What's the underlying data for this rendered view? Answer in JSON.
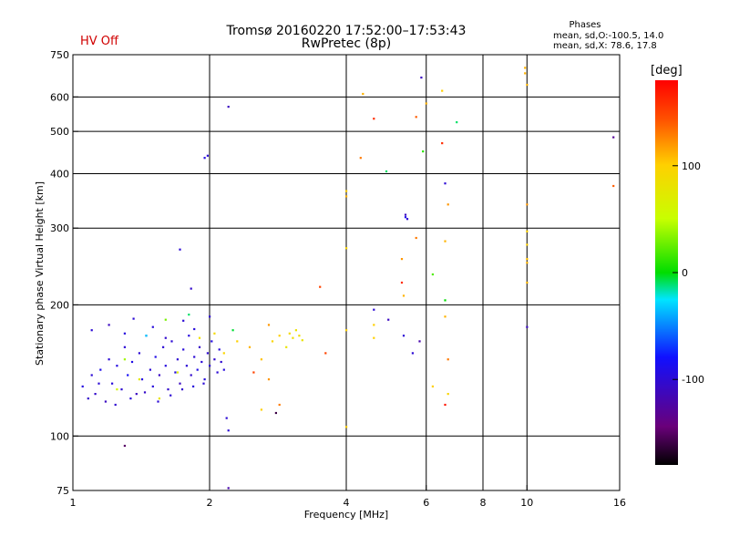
{
  "header": {
    "title_line1": "Tromsø 20160220 17:52:00–17:53:43",
    "title_line2": "RwPretec (8p)",
    "hv_status": "HV Off",
    "phases_heading": "Phases",
    "phases_o": "mean, sd,O:-100.5, 14.0",
    "phases_x": "mean, sd,X:  78.6, 17.8"
  },
  "colors": {
    "hv_status": "#d00000",
    "dominant_points": "#1030e0",
    "grid": "#000000"
  },
  "colorbar": {
    "label": "[deg]",
    "ticks": [
      {
        "value": 100,
        "label": "100"
      },
      {
        "value": 0,
        "label": "0"
      },
      {
        "value": -100,
        "label": "-100"
      }
    ],
    "range": [
      -180,
      180
    ]
  },
  "chart_data": {
    "type": "scatter",
    "xlabel": "Frequency [MHz]",
    "ylabel": "Stationary phase Virtual Height [km]",
    "xscale": "log",
    "yscale": "log",
    "xlim": [
      1,
      16
    ],
    "ylim": [
      75,
      750
    ],
    "x_ticks": [
      {
        "v": 1,
        "label": "1"
      },
      {
        "v": 2,
        "label": "2"
      },
      {
        "v": 4,
        "label": "4"
      },
      {
        "v": 6,
        "label": "6"
      },
      {
        "v": 8,
        "label": "8"
      },
      {
        "v": 10,
        "label": "10"
      },
      {
        "v": 16,
        "label": "16"
      }
    ],
    "y_ticks": [
      {
        "v": 75,
        "label": "75"
      },
      {
        "v": 100,
        "label": "100"
      },
      {
        "v": 200,
        "label": "200"
      },
      {
        "v": 300,
        "label": "300"
      },
      {
        "v": 400,
        "label": "400"
      },
      {
        "v": 500,
        "label": "500"
      },
      {
        "v": 600,
        "label": "600"
      },
      {
        "v": 750,
        "label": "750"
      }
    ],
    "grid_x": [
      2,
      4,
      6,
      8,
      10
    ],
    "grid_y": [
      100,
      200,
      300,
      400,
      500,
      600
    ],
    "points_note": "phase in degrees",
    "points": [
      [
        1.05,
        130,
        -95
      ],
      [
        1.1,
        138,
        -100
      ],
      [
        1.12,
        125,
        -105
      ],
      [
        1.15,
        142,
        -90
      ],
      [
        1.18,
        120,
        -110
      ],
      [
        1.2,
        150,
        -100
      ],
      [
        1.22,
        132,
        -98
      ],
      [
        1.25,
        145,
        -95
      ],
      [
        1.28,
        128,
        -102
      ],
      [
        1.3,
        160,
        -100
      ],
      [
        1.32,
        138,
        -85
      ],
      [
        1.35,
        148,
        -92
      ],
      [
        1.38,
        125,
        -110
      ],
      [
        1.4,
        155,
        -100
      ],
      [
        1.42,
        135,
        -95
      ],
      [
        1.45,
        170,
        -105
      ],
      [
        1.48,
        142,
        -100
      ],
      [
        1.5,
        130,
        -98
      ],
      [
        1.52,
        152,
        -92
      ],
      [
        1.55,
        138,
        -108
      ],
      [
        1.58,
        160,
        -100
      ],
      [
        1.6,
        145,
        -96
      ],
      [
        1.62,
        128,
        -104
      ],
      [
        1.65,
        165,
        -100
      ],
      [
        1.68,
        140,
        -94
      ],
      [
        1.7,
        150,
        -102
      ],
      [
        1.72,
        132,
        -110
      ],
      [
        1.75,
        158,
        -98
      ],
      [
        1.78,
        145,
        -100
      ],
      [
        1.8,
        170,
        -96
      ],
      [
        1.82,
        138,
        -104
      ],
      [
        1.85,
        152,
        -100
      ],
      [
        1.88,
        142,
        -92
      ],
      [
        1.9,
        160,
        -106
      ],
      [
        1.92,
        148,
        -100
      ],
      [
        1.95,
        135,
        -98
      ],
      [
        1.98,
        155,
        -102
      ],
      [
        2.0,
        145,
        -100
      ],
      [
        2.02,
        165,
        -95
      ],
      [
        2.05,
        150,
        -104
      ],
      [
        2.08,
        140,
        -100
      ],
      [
        2.1,
        158,
        -98
      ],
      [
        2.12,
        148,
        -102
      ],
      [
        2.15,
        142,
        -96
      ],
      [
        1.08,
        122,
        -105
      ],
      [
        1.14,
        132,
        -100
      ],
      [
        1.24,
        118,
        -102
      ],
      [
        1.34,
        122,
        -98
      ],
      [
        1.44,
        126,
        -106
      ],
      [
        1.54,
        120,
        -100
      ],
      [
        1.64,
        124,
        -100
      ],
      [
        1.74,
        128,
        -104
      ],
      [
        1.84,
        130,
        -98
      ],
      [
        1.94,
        132,
        -100
      ],
      [
        1.1,
        175,
        -100
      ],
      [
        1.2,
        180,
        -110
      ],
      [
        1.3,
        172,
        -96
      ],
      [
        1.36,
        186,
        -100
      ],
      [
        1.5,
        178,
        -98
      ],
      [
        1.6,
        168,
        -104
      ],
      [
        1.75,
        184,
        -100
      ],
      [
        1.85,
        176,
        -98
      ],
      [
        2.0,
        188,
        -102
      ],
      [
        1.25,
        128,
        60
      ],
      [
        1.4,
        135,
        75
      ],
      [
        1.55,
        122,
        80
      ],
      [
        1.7,
        140,
        70
      ],
      [
        1.9,
        168,
        85
      ],
      [
        2.05,
        172,
        90
      ],
      [
        2.15,
        155,
        95
      ],
      [
        2.3,
        165,
        100
      ],
      [
        2.45,
        160,
        110
      ],
      [
        2.6,
        150,
        105
      ],
      [
        2.75,
        165,
        95
      ],
      [
        2.85,
        170,
        100
      ],
      [
        2.95,
        160,
        80
      ],
      [
        3.0,
        172,
        90
      ],
      [
        3.05,
        168,
        85
      ],
      [
        3.1,
        175,
        82
      ],
      [
        3.15,
        170,
        88
      ],
      [
        3.2,
        166,
        80
      ],
      [
        2.7,
        180,
        120
      ],
      [
        2.5,
        140,
        150
      ],
      [
        1.6,
        185,
        30
      ],
      [
        1.8,
        190,
        -10
      ],
      [
        1.3,
        150,
        40
      ],
      [
        1.45,
        170,
        -30
      ],
      [
        2.25,
        175,
        -5
      ],
      [
        1.98,
        440,
        -100
      ],
      [
        1.95,
        435,
        -95
      ],
      [
        2.2,
        570,
        -110
      ],
      [
        1.72,
        268,
        -100
      ],
      [
        1.82,
        218,
        -105
      ],
      [
        1.3,
        95,
        -150
      ],
      [
        2.18,
        110,
        -100
      ],
      [
        2.2,
        103,
        -100
      ],
      [
        2.2,
        76,
        -120
      ],
      [
        2.8,
        113,
        -160
      ],
      [
        2.6,
        115,
        100
      ],
      [
        2.7,
        135,
        120
      ],
      [
        2.85,
        118,
        130
      ],
      [
        3.5,
        220,
        150
      ],
      [
        3.6,
        155,
        150
      ],
      [
        4.0,
        365,
        100
      ],
      [
        4.0,
        355,
        110
      ],
      [
        4.0,
        270,
        95
      ],
      [
        4.0,
        175,
        100
      ],
      [
        4.0,
        105,
        100
      ],
      [
        4.3,
        435,
        130
      ],
      [
        4.35,
        610,
        110
      ],
      [
        4.6,
        535,
        160
      ],
      [
        4.6,
        195,
        -100
      ],
      [
        4.6,
        180,
        100
      ],
      [
        4.6,
        168,
        100
      ],
      [
        4.9,
        405,
        -10
      ],
      [
        4.95,
        185,
        -110
      ],
      [
        5.3,
        255,
        120
      ],
      [
        5.3,
        225,
        160
      ],
      [
        5.35,
        210,
        110
      ],
      [
        5.4,
        322,
        -110
      ],
      [
        5.45,
        315,
        -100
      ],
      [
        5.4,
        318,
        -90
      ],
      [
        5.35,
        170,
        -100
      ],
      [
        5.7,
        285,
        130
      ],
      [
        5.7,
        540,
        140
      ],
      [
        5.9,
        450,
        10
      ],
      [
        5.85,
        665,
        -110
      ],
      [
        6.0,
        580,
        110
      ],
      [
        6.2,
        235,
        20
      ],
      [
        6.5,
        620,
        100
      ],
      [
        6.5,
        470,
        160
      ],
      [
        6.6,
        280,
        110
      ],
      [
        6.6,
        380,
        -100
      ],
      [
        6.7,
        340,
        120
      ],
      [
        6.6,
        205,
        0
      ],
      [
        6.6,
        188,
        110
      ],
      [
        6.7,
        150,
        130
      ],
      [
        6.7,
        125,
        95
      ],
      [
        6.6,
        118,
        170
      ],
      [
        7.0,
        525,
        -10
      ],
      [
        5.6,
        155,
        -100
      ],
      [
        5.8,
        165,
        -120
      ],
      [
        6.2,
        130,
        100
      ],
      [
        9.9,
        700,
        110
      ],
      [
        9.9,
        680,
        110
      ],
      [
        10.0,
        640,
        110
      ],
      [
        10.0,
        340,
        120
      ],
      [
        10.0,
        295,
        100
      ],
      [
        10.0,
        275,
        100
      ],
      [
        10.0,
        255,
        105
      ],
      [
        10.0,
        250,
        110
      ],
      [
        10.0,
        225,
        110
      ],
      [
        10.0,
        178,
        -110
      ],
      [
        15.5,
        485,
        -130
      ],
      [
        15.5,
        375,
        140
      ]
    ]
  }
}
